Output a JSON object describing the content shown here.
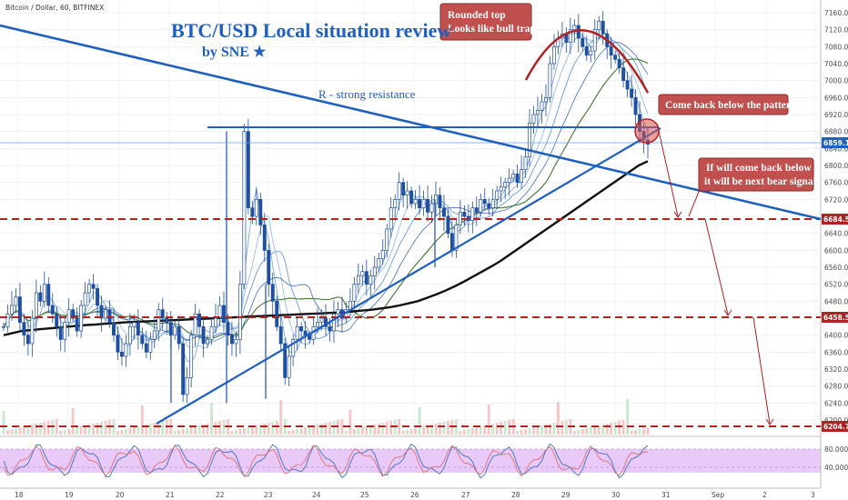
{
  "header": {
    "symbol": "Bitcoin / Dollar, 60, BITFINEX",
    "title": "BTC/USD Local situation review",
    "subtitle": "by SNE ★"
  },
  "annotations": {
    "resistance": "R - strong resistance",
    "note1_line1": "Rounded top",
    "note1_line2": "Looks like bull trap!",
    "note2": "Come back below the pattern",
    "note3_line1": "If will come back below R",
    "note3_line2": "it will be next bear signal"
  },
  "colors": {
    "candle_up": "#1f5fbf",
    "candle_down": "#1f5fbf",
    "trend": "#1f5fbf",
    "dashed_levels": "#b22222",
    "note_fill": "#c0504d",
    "arc": "#b22222",
    "ma_black": "#111111",
    "rsi_band": "#e3c6f5"
  },
  "chart_data": {
    "type": "candlestick",
    "title": "BTC/USD Local situation review",
    "y_ticks": [
      "7160.0",
      "7120.0",
      "7080.0",
      "7040.0",
      "7000.0",
      "6960.0",
      "6920.0",
      "6880.0",
      "6840.0",
      "6800.0",
      "6760.0",
      "6720.0",
      "6680.0",
      "6640.0",
      "6600.0",
      "6560.0",
      "6520.0",
      "6480.0",
      "6440.0",
      "6400.0",
      "6360.0",
      "6320.0",
      "6280.0",
      "6240.0",
      "6200.0"
    ],
    "ylim": [
      6186,
      7172
    ],
    "x_ticks": [
      "18",
      "19",
      "20",
      "21",
      "22",
      "23",
      "24",
      "25",
      "26",
      "27",
      "28",
      "29",
      "30",
      "31",
      "Sep",
      "2",
      "3"
    ],
    "price_tags": [
      {
        "label": "6859.1",
        "value": 6859.1,
        "color": "#1f5fbf"
      },
      {
        "label": "6684.5",
        "value": 6684.5,
        "color": "#b22222"
      },
      {
        "label": "6458.5",
        "value": 6458.5,
        "color": "#b22222"
      },
      {
        "label": "6204.7",
        "value": 6204.7,
        "color": "#b22222"
      }
    ],
    "levels": [
      6684.5,
      6458.5,
      6204.7
    ],
    "horizontal_line": 6893,
    "rsi_ticks": [
      "80.0000",
      "40.0000"
    ],
    "series": [
      {
        "name": "close",
        "values": [
          6420,
          6450,
          6470,
          6490,
          6430,
          6400,
          6380,
          6440,
          6500,
          6480,
          6520,
          6470,
          6450,
          6420,
          6390,
          6430,
          6460,
          6440,
          6410,
          6470,
          6500,
          6520,
          6510,
          6470,
          6440,
          6460,
          6430,
          6400,
          6360,
          6350,
          6380,
          6420,
          6430,
          6400,
          6380,
          6360,
          6390,
          6410,
          6460,
          6440,
          6430,
          6400,
          6420,
          6380,
          6260,
          6300,
          6400,
          6450,
          6420,
          6380,
          6390,
          6420,
          6440,
          6470,
          6430,
          6400,
          6380,
          6390,
          6520,
          6880,
          6700,
          6680,
          6720,
          6660,
          6600,
          6520,
          6480,
          6420,
          6380,
          6300,
          6350,
          6390,
          6420,
          6410,
          6400,
          6390,
          6420,
          6430,
          6440,
          6420,
          6410,
          6450,
          6460,
          6440,
          6460,
          6480,
          6520,
          6540,
          6550,
          6520,
          6540,
          6560,
          6580,
          6600,
          6650,
          6700,
          6720,
          6760,
          6730,
          6740,
          6710,
          6720,
          6700,
          6720,
          6690,
          6710,
          6730,
          6700,
          6680,
          6640,
          6600,
          6660,
          6690,
          6680,
          6670,
          6700,
          6690,
          6720,
          6710,
          6700,
          6720,
          6740,
          6750,
          6760,
          6770,
          6780,
          6760,
          6790,
          6820,
          6900,
          6920,
          6930,
          6950,
          6960,
          7040,
          7080,
          7100,
          7110,
          7090,
          7120,
          7130,
          7100,
          7080,
          7060,
          7070,
          7120,
          7140,
          7110,
          7080,
          7060,
          7050,
          7030,
          7000,
          6980,
          6960,
          6920,
          6880,
          6860,
          6850
        ]
      },
      {
        "name": "ma_black",
        "values": [
          6400,
          6405,
          6410,
          6412,
          6414,
          6416,
          6418,
          6420,
          6422,
          6424,
          6425,
          6427,
          6428,
          6430,
          6431,
          6432,
          6433,
          6434,
          6435,
          6436,
          6437,
          6438,
          6439,
          6440,
          6441,
          6442,
          6443,
          6444,
          6445,
          6446,
          6447,
          6448,
          6449,
          6450,
          6451,
          6452,
          6453,
          6454,
          6456,
          6458,
          6460,
          6463,
          6466,
          6470,
          6475,
          6480,
          6488,
          6496,
          6505,
          6515,
          6526,
          6538,
          6550,
          6562,
          6575,
          6590,
          6605,
          6620,
          6635,
          6650,
          6665,
          6680,
          6695,
          6710,
          6725,
          6740,
          6755,
          6770,
          6785,
          6800,
          6810
        ]
      }
    ]
  }
}
